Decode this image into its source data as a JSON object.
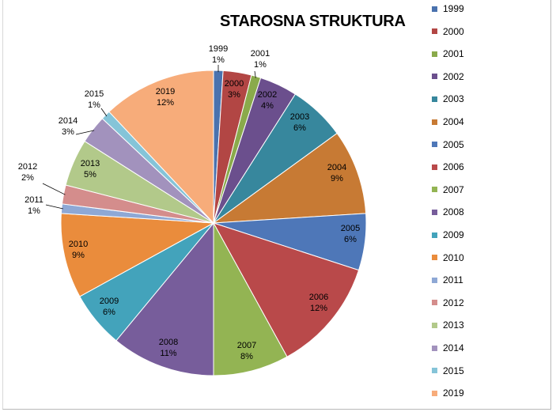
{
  "chart_data": {
    "type": "pie",
    "title": "STAROSNA STRUKTURA",
    "legend_position": "right",
    "slices": [
      {
        "label": "1999",
        "value": 1,
        "percent_label": "1%",
        "color": "#4a72ae"
      },
      {
        "label": "2000",
        "value": 3,
        "percent_label": "3%",
        "color": "#b24644"
      },
      {
        "label": "2001",
        "value": 1,
        "percent_label": "1%",
        "color": "#8aaa4b"
      },
      {
        "label": "2002",
        "value": 4,
        "percent_label": "4%",
        "color": "#6b4f8d"
      },
      {
        "label": "2003",
        "value": 6,
        "percent_label": "6%",
        "color": "#37879d"
      },
      {
        "label": "2004",
        "value": 9,
        "percent_label": "9%",
        "color": "#c77a34"
      },
      {
        "label": "2005",
        "value": 6,
        "percent_label": "6%",
        "color": "#4e77b8"
      },
      {
        "label": "2006",
        "value": 12,
        "percent_label": "12%",
        "color": "#b9494a"
      },
      {
        "label": "2007",
        "value": 8,
        "percent_label": "8%",
        "color": "#93b453"
      },
      {
        "label": "2008",
        "value": 11,
        "percent_label": "11%",
        "color": "#775d9b"
      },
      {
        "label": "2009",
        "value": 6,
        "percent_label": "6%",
        "color": "#43a3bb"
      },
      {
        "label": "2010",
        "value": 9,
        "percent_label": "9%",
        "color": "#ea8c3c"
      },
      {
        "label": "2011",
        "value": 1,
        "percent_label": "1%",
        "color": "#8ea8d5"
      },
      {
        "label": "2012",
        "value": 2,
        "percent_label": "2%",
        "color": "#d48d8c"
      },
      {
        "label": "2013",
        "value": 5,
        "percent_label": "5%",
        "color": "#b2c98a"
      },
      {
        "label": "2014",
        "value": 3,
        "percent_label": "3%",
        "color": "#a292bd"
      },
      {
        "label": "2015",
        "value": 1,
        "percent_label": "1%",
        "color": "#85c4d8"
      },
      {
        "label": "2019",
        "value": 12,
        "percent_label": "12%",
        "color": "#f7ac7a"
      }
    ]
  }
}
